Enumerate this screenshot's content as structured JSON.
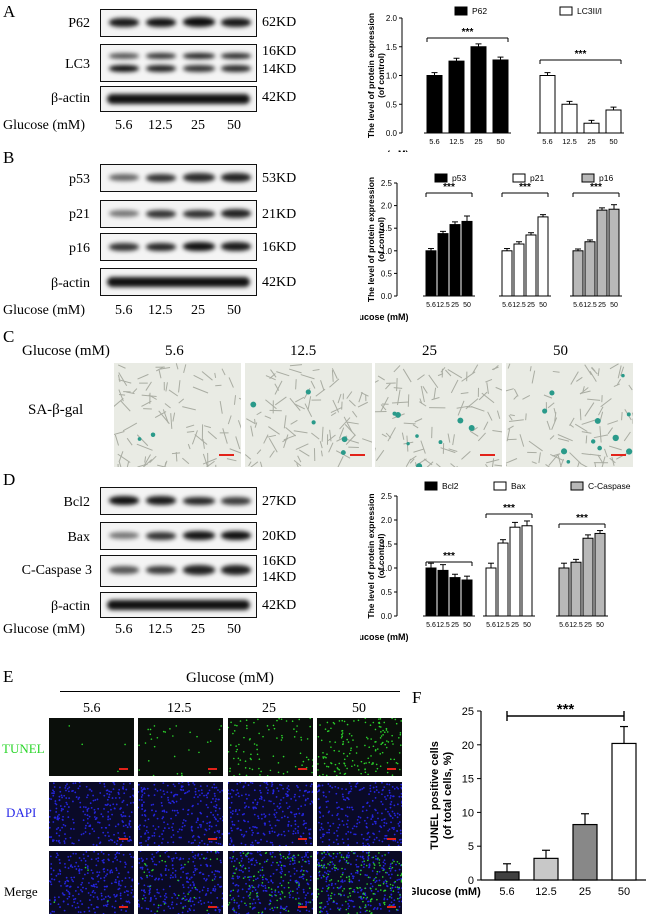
{
  "panel_labels": {
    "A": "A",
    "B": "B",
    "C": "C",
    "D": "D",
    "E": "E",
    "F": "F"
  },
  "wb_A": {
    "rows": [
      {
        "protein": "P62",
        "kd": [
          "62KD"
        ]
      },
      {
        "protein": "LC3",
        "kd": [
          "16KD",
          "14KD"
        ]
      },
      {
        "protein": "β-actin",
        "kd": [
          "42KD"
        ]
      }
    ],
    "glucose_label": "Glucose (mM)",
    "lanes": [
      "5.6",
      "12.5",
      "25",
      "50"
    ]
  },
  "wb_B": {
    "rows": [
      {
        "protein": "p53",
        "kd": [
          "53KD"
        ]
      },
      {
        "protein": "p21",
        "kd": [
          "21KD"
        ]
      },
      {
        "protein": "p16",
        "kd": [
          "16KD"
        ]
      },
      {
        "protein": "β-actin",
        "kd": [
          "42KD"
        ]
      }
    ],
    "glucose_label": "Glucose (mM)",
    "lanes": [
      "5.6",
      "12.5",
      "25",
      "50"
    ]
  },
  "wb_D": {
    "rows": [
      {
        "protein": "Bcl2",
        "kd": [
          "27KD"
        ]
      },
      {
        "protein": "Bax",
        "kd": [
          "20KD"
        ]
      },
      {
        "protein": "C-Caspase 3",
        "kd": [
          "16KD",
          "14KD"
        ]
      },
      {
        "protein": "β-actin",
        "kd": [
          "42KD"
        ]
      }
    ],
    "glucose_label": "Glucose (mM)",
    "lanes": [
      "5.6",
      "12.5",
      "25",
      "50"
    ]
  },
  "panel_C": {
    "glucose_label": "Glucose (mM)",
    "concentrations": [
      "5.6",
      "12.5",
      "25",
      "50"
    ],
    "row_label": "SA-β-gal",
    "colors": {
      "bg": "#e9ebe4",
      "cell": "#a9aca2",
      "stain": "#2a9a8a"
    }
  },
  "panel_E": {
    "header": "Glucose (mM)",
    "concentrations": [
      "5.6",
      "12.5",
      "25",
      "50"
    ],
    "rows": [
      {
        "label": "TUNEL",
        "color": "#2bd62b",
        "bg": "#0b0f0b"
      },
      {
        "label": "DAPI",
        "color": "#2525e0",
        "bg": "#0a0a28"
      },
      {
        "label": "Merge",
        "color": "#1b1bb0",
        "bg": "#0a0a24"
      }
    ]
  },
  "chart_data": [
    {
      "type": "bar",
      "panel": "A",
      "ylabel": "The level of protein expression\n(of control)",
      "xlabel": "Glucose (mM)",
      "ylim": [
        0,
        2.0
      ],
      "yticks": [
        "0.0",
        "0.5",
        "1.0",
        "1.5",
        "2.0"
      ],
      "categories": [
        "5.6",
        "12.5",
        "25",
        "50"
      ],
      "series": [
        {
          "name": "P62",
          "fill": "#000000",
          "values": [
            1.0,
            1.25,
            1.5,
            1.27
          ],
          "errors": [
            0.05,
            0.05,
            0.05,
            0.05
          ]
        },
        {
          "name": "LC3II/I",
          "fill": "#ffffff",
          "values": [
            1.0,
            0.5,
            0.17,
            0.4
          ],
          "errors": [
            0.05,
            0.05,
            0.05,
            0.05
          ]
        }
      ],
      "significance": [
        {
          "label": "***",
          "series": 0
        },
        {
          "label": "***",
          "series": 1
        }
      ]
    },
    {
      "type": "bar",
      "panel": "B",
      "ylabel": "The level of protein expression\n(of control)",
      "xlabel": "Glucose (mM)",
      "ylim": [
        0,
        2.5
      ],
      "yticks": [
        "0.0",
        "0.5",
        "1.0",
        "1.5",
        "2.0",
        "2.5"
      ],
      "categories": [
        "5.6",
        "12.5",
        "25",
        "50"
      ],
      "series": [
        {
          "name": "p53",
          "fill": "#000000",
          "values": [
            1.0,
            1.38,
            1.58,
            1.65
          ],
          "errors": [
            0.05,
            0.05,
            0.06,
            0.12
          ]
        },
        {
          "name": "p21",
          "fill": "#ffffff",
          "values": [
            1.0,
            1.15,
            1.35,
            1.75
          ],
          "errors": [
            0.05,
            0.05,
            0.05,
            0.05
          ]
        },
        {
          "name": "p16",
          "fill": "#b8b8b8",
          "values": [
            1.0,
            1.2,
            1.9,
            1.92
          ],
          "errors": [
            0.04,
            0.04,
            0.05,
            0.1
          ]
        }
      ],
      "significance": [
        {
          "label": "***",
          "series": 0
        },
        {
          "label": "***",
          "series": 1
        },
        {
          "label": "***",
          "series": 2
        }
      ]
    },
    {
      "type": "bar",
      "panel": "D",
      "ylabel": "The level of protein expression\n(of control)",
      "xlabel": "Glucose (mM)",
      "ylim": [
        0,
        2.5
      ],
      "yticks": [
        "0.0",
        "0.5",
        "1.0",
        "1.5",
        "2.0",
        "2.5"
      ],
      "categories": [
        "5.6",
        "12.5",
        "25",
        "50"
      ],
      "series": [
        {
          "name": "Bcl2",
          "fill": "#000000",
          "values": [
            1.0,
            0.95,
            0.8,
            0.75
          ],
          "errors": [
            0.1,
            0.12,
            0.07,
            0.08
          ]
        },
        {
          "name": "Bax",
          "fill": "#ffffff",
          "values": [
            1.0,
            1.52,
            1.85,
            1.88
          ],
          "errors": [
            0.1,
            0.07,
            0.1,
            0.1
          ]
        },
        {
          "name": "C-Caspase",
          "fill": "#b8b8b8",
          "values": [
            1.0,
            1.12,
            1.62,
            1.72
          ],
          "errors": [
            0.1,
            0.06,
            0.07,
            0.06
          ]
        }
      ],
      "significance": [
        {
          "label": "***",
          "series": 0
        },
        {
          "label": "***",
          "series": 1
        },
        {
          "label": "***",
          "series": 2
        }
      ]
    },
    {
      "type": "bar",
      "panel": "F",
      "ylabel": "TUNEL positive cells\n(of total cells, %)",
      "xlabel": "Glucose (mM)",
      "ylim": [
        0,
        25
      ],
      "yticks": [
        "0",
        "5",
        "10",
        "15",
        "20",
        "25"
      ],
      "categories": [
        "5.6",
        "12.5",
        "25",
        "50"
      ],
      "values": [
        1.2,
        3.2,
        8.2,
        20.2
      ],
      "errors": [
        1.2,
        1.2,
        1.6,
        2.5
      ],
      "fills": [
        "#404040",
        "#c8c8c8",
        "#888888",
        "#ffffff"
      ],
      "significance": [
        {
          "label": "***"
        }
      ]
    }
  ]
}
